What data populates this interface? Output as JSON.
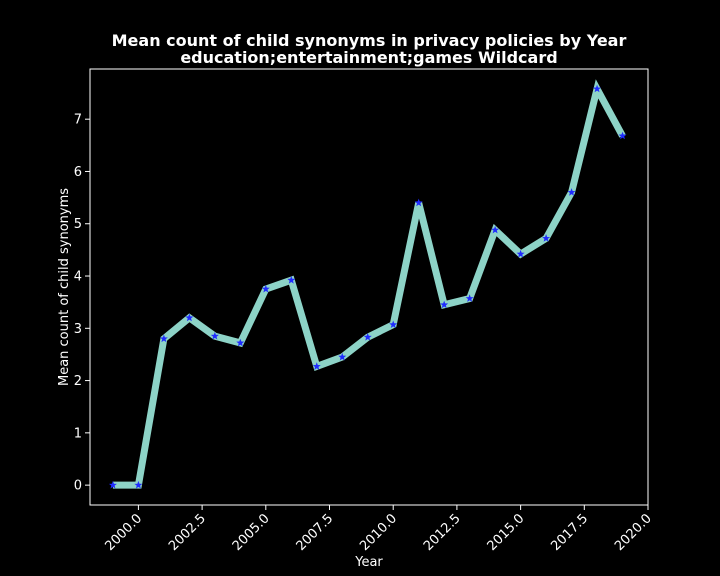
{
  "chart_data": {
    "type": "line",
    "title": "Mean count of child synonyms in privacy policies by Year",
    "subtitle": "education;entertainment;games Wildcard",
    "xlabel": "Year",
    "ylabel": "Mean count of child synonyms",
    "xlim": [
      1998.1,
      2020.0
    ],
    "ylim": [
      -0.38,
      7.96
    ],
    "x_ticks": [
      2000.0,
      2002.5,
      2005.0,
      2007.5,
      2010.0,
      2012.5,
      2015.0,
      2017.5,
      2020.0
    ],
    "x_tick_labels": [
      "2000.0",
      "2002.5",
      "2005.0",
      "2007.5",
      "2010.0",
      "2012.5",
      "2015.0",
      "2017.5",
      "2020.0"
    ],
    "y_ticks": [
      0,
      1,
      2,
      3,
      4,
      5,
      6,
      7
    ],
    "y_tick_labels": [
      "0",
      "1",
      "2",
      "3",
      "4",
      "5",
      "6",
      "7"
    ],
    "grid": false,
    "series": [
      {
        "line_color": "#8dd3c7",
        "marker_color": "#1f2bff",
        "marker": "star",
        "x": [
          1999,
          2000,
          2001,
          2002,
          2003,
          2004,
          2005,
          2006,
          2007,
          2008,
          2009,
          2010,
          2011,
          2012,
          2013,
          2014,
          2015,
          2016,
          2017,
          2018,
          2019
        ],
        "values": [
          0.0,
          0.0,
          2.8,
          3.2,
          2.85,
          2.72,
          3.75,
          3.92,
          2.27,
          2.45,
          2.83,
          3.07,
          5.4,
          3.45,
          3.57,
          4.88,
          4.42,
          4.72,
          5.6,
          7.58,
          6.68
        ]
      }
    ]
  }
}
